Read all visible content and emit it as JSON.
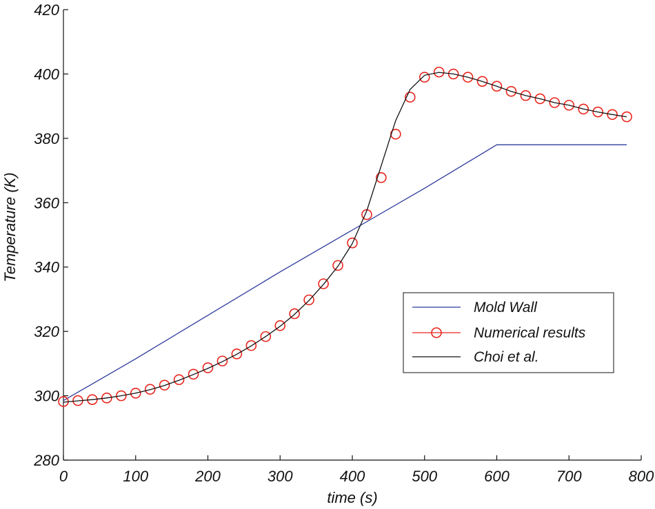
{
  "chart_data": {
    "type": "line",
    "xlabel": "time  (s)",
    "ylabel": "Temperature (K)",
    "xlim": [
      0,
      800
    ],
    "ylim": [
      280,
      420
    ],
    "xticks": [
      0,
      100,
      200,
      300,
      400,
      500,
      600,
      700,
      800
    ],
    "yticks": [
      280,
      300,
      320,
      340,
      360,
      380,
      400,
      420
    ],
    "legend_position": "right",
    "series": [
      {
        "name": "Mold Wall",
        "color": "#2b3a9c",
        "style": "line",
        "x": [
          0,
          100,
          200,
          300,
          400,
          500,
          600,
          780
        ],
        "y": [
          298.5,
          311.5,
          325.0,
          338.5,
          351.5,
          364.5,
          378.0,
          378.0
        ]
      },
      {
        "name": "Numerical results",
        "color": "#e8251c",
        "style": "markers",
        "x": [
          0,
          20,
          40,
          60,
          80,
          100,
          120,
          140,
          160,
          180,
          200,
          220,
          240,
          260,
          280,
          300,
          320,
          340,
          360,
          380,
          400,
          420,
          440,
          460,
          480,
          500,
          520,
          540,
          560,
          580,
          600,
          620,
          640,
          660,
          680,
          700,
          720,
          740,
          760,
          780
        ],
        "y": [
          298.2,
          298.5,
          298.8,
          299.3,
          300.0,
          300.8,
          302.0,
          303.3,
          305.0,
          306.7,
          308.7,
          310.8,
          313.0,
          315.6,
          318.4,
          321.8,
          325.5,
          329.8,
          334.8,
          340.5,
          347.5,
          356.3,
          367.8,
          381.3,
          392.8,
          399.0,
          400.6,
          400.0,
          399.0,
          397.7,
          396.2,
          394.6,
          393.3,
          392.3,
          391.1,
          390.3,
          389.1,
          388.2,
          387.4,
          386.7
        ]
      },
      {
        "name": "Choi  et  al.",
        "color": "#111111",
        "style": "line",
        "x": [
          0,
          20,
          40,
          60,
          80,
          100,
          120,
          140,
          160,
          180,
          200,
          220,
          240,
          260,
          280,
          300,
          320,
          340,
          360,
          380,
          400,
          420,
          440,
          460,
          480,
          500,
          520,
          540,
          560,
          580,
          600,
          620,
          640,
          660,
          680,
          700,
          720,
          740,
          760,
          780
        ],
        "y": [
          298.0,
          298.4,
          298.8,
          299.3,
          300.0,
          300.8,
          301.9,
          303.2,
          304.8,
          306.6,
          308.5,
          310.6,
          312.9,
          315.5,
          318.4,
          321.6,
          325.3,
          329.6,
          334.6,
          340.2,
          347.3,
          357.5,
          371.5,
          385.5,
          395.2,
          399.6,
          400.5,
          400.0,
          399.0,
          397.7,
          396.2,
          394.6,
          393.3,
          392.3,
          391.1,
          390.3,
          389.1,
          388.2,
          387.4,
          386.7
        ]
      }
    ]
  }
}
